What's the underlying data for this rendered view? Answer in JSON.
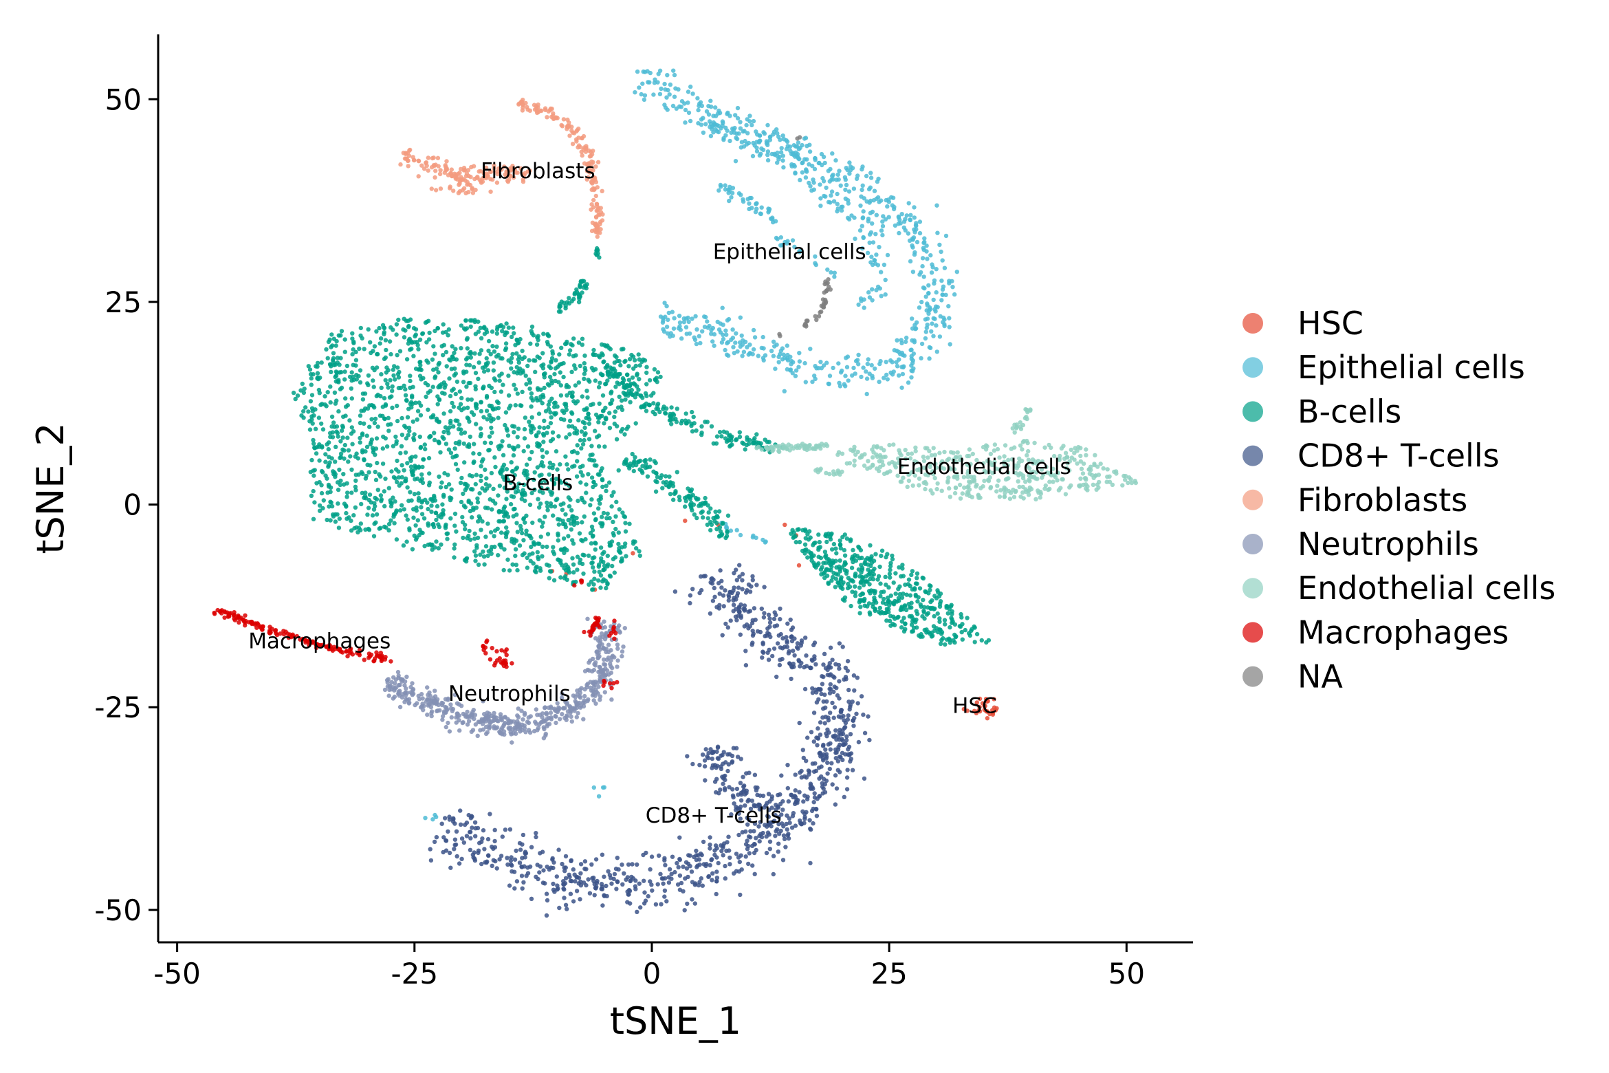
{
  "chart_data": {
    "type": "scatter",
    "title": "",
    "xlabel": "tSNE_1",
    "ylabel": "tSNE_2",
    "xlim": [
      -52,
      57
    ],
    "ylim": [
      -54,
      58
    ],
    "x_ticks": [
      -50,
      -25,
      0,
      25,
      50
    ],
    "y_ticks": [
      -50,
      -25,
      0,
      25,
      50
    ],
    "x_tick_labels": [
      "-50",
      "-25",
      "0",
      "25",
      "50"
    ],
    "y_tick_labels": [
      "-50",
      "-25",
      "0",
      "25",
      "50"
    ],
    "grid": false,
    "legend_position": "right",
    "series": [
      {
        "name": "HSC",
        "color": "#E64B35",
        "n_points": 40,
        "regions": [
          {
            "kind": "blob",
            "cx": 35,
            "cy": -25,
            "sx": 1.0,
            "sy": 0.7,
            "n": 28
          }
        ],
        "points": [
          [
            14,
            -2.5
          ],
          [
            15.5,
            -7.5
          ],
          [
            15.2,
            -3.8
          ],
          [
            -9,
            -8.5
          ],
          [
            -6,
            -10.5
          ],
          [
            -2,
            -6
          ],
          [
            7,
            -2.5
          ],
          [
            3.5,
            -2
          ],
          [
            -10.5,
            -8.2
          ]
        ]
      },
      {
        "name": "Epithelial cells",
        "color": "#4DBBD5",
        "n_points": 900,
        "regions": [
          {
            "kind": "path",
            "pts": [
              [
                -1,
                53
              ],
              [
                4,
                49
              ],
              [
                10,
                46
              ],
              [
                16,
                43
              ],
              [
                21,
                40
              ],
              [
                25,
                37
              ],
              [
                28,
                33
              ],
              [
                30,
                29
              ],
              [
                30.5,
                25
              ],
              [
                29,
                21
              ],
              [
                27,
                18
              ],
              [
                23,
                16.5
              ],
              [
                18,
                16.5
              ],
              [
                14,
                18
              ],
              [
                9,
                20.5
              ],
              [
                5,
                22
              ],
              [
                1,
                22
              ]
            ],
            "width": 2.2,
            "n": 640
          },
          {
            "kind": "path",
            "pts": [
              [
                5,
                47
              ],
              [
                10,
                45
              ],
              [
                16,
                41
              ],
              [
                21,
                36
              ],
              [
                24,
                31
              ],
              [
                24,
                27
              ],
              [
                22,
                24
              ]
            ],
            "width": 1.2,
            "n": 120
          },
          {
            "kind": "path",
            "pts": [
              [
                7,
                39
              ],
              [
                10,
                37.5
              ],
              [
                13,
                35
              ]
            ],
            "width": 0.8,
            "n": 40
          },
          {
            "kind": "path",
            "pts": [
              [
                13,
                33
              ],
              [
                17,
                30
              ],
              [
                19.5,
                28
              ]
            ],
            "width": 0.6,
            "n": 20
          },
          {
            "kind": "path",
            "pts": [
              [
                7,
                -2
              ],
              [
                9,
                -3.5
              ],
              [
                12,
                -4.5
              ]
            ],
            "width": 0.4,
            "n": 14
          },
          {
            "kind": "blob",
            "cx": -23,
            "cy": -38.5,
            "sx": 0.4,
            "sy": 0.3,
            "n": 4
          },
          {
            "kind": "blob",
            "cx": -6,
            "cy": -35,
            "sx": 0.5,
            "sy": 0.5,
            "n": 4
          }
        ]
      },
      {
        "name": "B-cells",
        "color": "#00A087",
        "n_points": 2700,
        "regions": [
          {
            "kind": "poly",
            "pts": [
              [
                -38,
                14
              ],
              [
                -34,
                21
              ],
              [
                -28,
                23
              ],
              [
                -20,
                23
              ],
              [
                -12,
                22
              ],
              [
                -6,
                20
              ],
              [
                -2,
                19
              ],
              [
                2,
                16
              ],
              [
                -2,
                9
              ],
              [
                -6,
                6
              ],
              [
                -3,
                0
              ],
              [
                -1,
                -6
              ],
              [
                -5,
                -11
              ],
              [
                -12,
                -9
              ],
              [
                -20,
                -7
              ],
              [
                -28,
                -5
              ],
              [
                -36,
                -2
              ],
              [
                -36,
                8
              ]
            ],
            "n": 1900
          },
          {
            "kind": "path",
            "pts": [
              [
                -5,
                17
              ],
              [
                0,
                12
              ],
              [
                4,
                10
              ],
              [
                8,
                8
              ],
              [
                11,
                7.5
              ],
              [
                14,
                7
              ]
            ],
            "width": 1.0,
            "n": 160
          },
          {
            "kind": "path",
            "pts": [
              [
                -3,
                6
              ],
              [
                2,
                2.5
              ],
              [
                6,
                -1
              ],
              [
                8,
                -4
              ]
            ],
            "width": 1.2,
            "n": 130
          },
          {
            "kind": "path",
            "pts": [
              [
                -7,
                27.5
              ],
              [
                -8.5,
                25
              ],
              [
                -10,
                24
              ]
            ],
            "width": 0.7,
            "n": 40
          },
          {
            "kind": "path",
            "pts": [
              [
                -6,
                32
              ],
              [
                -5.5,
                30.5
              ]
            ],
            "width": 0.3,
            "n": 8
          },
          {
            "kind": "poly",
            "pts": [
              [
                14,
                -3
              ],
              [
                19,
                -3
              ],
              [
                25,
                -6
              ],
              [
                31,
                -11
              ],
              [
                34,
                -15
              ],
              [
                36,
                -17
              ],
              [
                31,
                -17.5
              ],
              [
                26,
                -15.5
              ],
              [
                21,
                -13
              ],
              [
                18,
                -9
              ]
            ],
            "n": 470
          }
        ]
      },
      {
        "name": "CD8+ T-cells",
        "color": "#3C5488",
        "n_points": 1150,
        "regions": [
          {
            "kind": "path",
            "pts": [
              [
                -22,
                -39
              ],
              [
                -17,
                -43
              ],
              [
                -11,
                -46
              ],
              [
                -4,
                -47.5
              ],
              [
                2,
                -46.5
              ],
              [
                8,
                -44
              ],
              [
                13,
                -40
              ],
              [
                17,
                -35
              ],
              [
                19.5,
                -29
              ],
              [
                19.5,
                -23
              ],
              [
                16,
                -19
              ],
              [
                12,
                -16
              ],
              [
                8,
                -12
              ],
              [
                7,
                -8
              ]
            ],
            "width": 3.2,
            "n": 900
          },
          {
            "kind": "path",
            "pts": [
              [
                6,
                -30
              ],
              [
                9,
                -36
              ],
              [
                13,
                -38
              ]
            ],
            "width": 2.5,
            "n": 120
          },
          {
            "kind": "blob",
            "cx": 20,
            "cy": -30,
            "sx": 0.5,
            "sy": 1.2,
            "n": 25
          }
        ]
      },
      {
        "name": "Fibroblasts",
        "color": "#F39B7F",
        "n_points": 330,
        "regions": [
          {
            "kind": "path",
            "pts": [
              [
                -26.5,
                43
              ],
              [
                -23,
                41.5
              ],
              [
                -19,
                40.5
              ],
              [
                -16,
                41
              ],
              [
                -13,
                41
              ]
            ],
            "width": 1.0,
            "n": 130
          },
          {
            "kind": "path",
            "pts": [
              [
                -14,
                49.5
              ],
              [
                -10,
                48
              ],
              [
                -7.5,
                45
              ],
              [
                -6.5,
                42
              ],
              [
                -6,
                38
              ],
              [
                -5.5,
                35
              ],
              [
                -5.8,
                33
              ]
            ],
            "width": 0.7,
            "n": 160
          },
          {
            "kind": "blob",
            "cx": -20,
            "cy": 39.5,
            "sx": 1.8,
            "sy": 1.0,
            "n": 30
          }
        ]
      },
      {
        "name": "Neutrophils",
        "color": "#8491B4",
        "n_points": 520,
        "regions": [
          {
            "kind": "path",
            "pts": [
              [
                -28,
                -22
              ],
              [
                -24,
                -24
              ],
              [
                -19,
                -26.5
              ],
              [
                -14,
                -27.5
              ],
              [
                -10,
                -26
              ],
              [
                -7,
                -24
              ],
              [
                -5,
                -21
              ],
              [
                -4.8,
                -17
              ],
              [
                -5,
                -14
              ]
            ],
            "width": 1.6,
            "n": 520
          }
        ]
      },
      {
        "name": "Endothelial cells",
        "color": "#91D1C2",
        "n_points": 560,
        "regions": [
          {
            "kind": "poly",
            "pts": [
              [
                19,
                7
              ],
              [
                26,
                7.5
              ],
              [
                33,
                7
              ],
              [
                40,
                8
              ],
              [
                46,
                7
              ],
              [
                48,
                5
              ],
              [
                51.5,
                2.5
              ],
              [
                46,
                1.5
              ],
              [
                40,
                0.5
              ],
              [
                34,
                0.5
              ],
              [
                28,
                1.5
              ],
              [
                24,
                4
              ],
              [
                20,
                5
              ]
            ],
            "n": 420
          },
          {
            "kind": "path",
            "pts": [
              [
                11,
                7
              ],
              [
                15,
                7
              ],
              [
                18.5,
                7.2
              ]
            ],
            "width": 0.4,
            "n": 60
          },
          {
            "kind": "path",
            "pts": [
              [
                38,
                9
              ],
              [
                39.5,
                11
              ],
              [
                40,
                12
              ]
            ],
            "width": 0.4,
            "n": 20
          },
          {
            "kind": "path",
            "pts": [
              [
                16.5,
                4.2
              ],
              [
                18.5,
                4
              ],
              [
                20.5,
                3.8
              ]
            ],
            "width": 0.3,
            "n": 14
          }
        ]
      },
      {
        "name": "Macrophages",
        "color": "#DC0000",
        "n_points": 260,
        "regions": [
          {
            "kind": "path",
            "pts": [
              [
                -46,
                -13
              ],
              [
                -42,
                -14.8
              ],
              [
                -38,
                -16.3
              ],
              [
                -34,
                -17.7
              ],
              [
                -30,
                -18.5
              ],
              [
                -28,
                -19
              ]
            ],
            "width": 0.45,
            "n": 140
          },
          {
            "kind": "path",
            "pts": [
              [
                -5.5,
                -14
              ],
              [
                -6,
                -15
              ],
              [
                -6.5,
                -16
              ]
            ],
            "width": 0.6,
            "n": 25
          },
          {
            "kind": "blob",
            "cx": -16,
            "cy": -19,
            "sx": 0.6,
            "sy": 0.6,
            "n": 20
          },
          {
            "kind": "blob",
            "cx": -17.5,
            "cy": -17.5,
            "sx": 0.3,
            "sy": 0.4,
            "n": 8
          },
          {
            "kind": "blob",
            "cx": -29,
            "cy": -19,
            "sx": 0.6,
            "sy": 0.3,
            "n": 10
          },
          {
            "kind": "blob",
            "cx": -4,
            "cy": -15.5,
            "sx": 0.3,
            "sy": 0.5,
            "n": 8
          },
          {
            "kind": "blob",
            "cx": -5,
            "cy": -22,
            "sx": 0.3,
            "sy": 0.3,
            "n": 4
          },
          {
            "kind": "blob",
            "cx": -7.5,
            "cy": -10,
            "sx": 0.3,
            "sy": 0.3,
            "n": 4
          },
          {
            "kind": "blob",
            "cx": -4,
            "cy": -22.5,
            "sx": 0.3,
            "sy": 0.3,
            "n": 3
          }
        ]
      },
      {
        "name": "NA",
        "color": "#7F7F7F",
        "n_points": 40,
        "regions": [
          {
            "kind": "path",
            "pts": [
              [
                18.5,
                28
              ],
              [
                18.2,
                25
              ],
              [
                17.5,
                23.5
              ],
              [
                16,
                22
              ]
            ],
            "width": 0.35,
            "n": 34
          },
          {
            "kind": "blob",
            "cx": 15.8,
            "cy": 45,
            "sx": 0.2,
            "sy": 0.2,
            "n": 2
          },
          {
            "kind": "blob",
            "cx": 13.5,
            "cy": 21,
            "sx": 0.2,
            "sy": 0.2,
            "n": 2
          }
        ]
      }
    ],
    "annotations": [
      {
        "text": "Fibroblasts",
        "x": -12,
        "y": 41
      },
      {
        "text": "Epithelial cells",
        "x": 14.5,
        "y": 31
      },
      {
        "text": "B-cells",
        "x": -12,
        "y": 2.5
      },
      {
        "text": "Endothelial cells",
        "x": 35,
        "y": 4.5
      },
      {
        "text": "Macrophages",
        "x": -35,
        "y": -17
      },
      {
        "text": "Neutrophils",
        "x": -15,
        "y": -23.5
      },
      {
        "text": "HSC",
        "x": 34,
        "y": -25
      },
      {
        "text": "CD8+ T-cells",
        "x": 6.5,
        "y": -38.5
      }
    ]
  }
}
